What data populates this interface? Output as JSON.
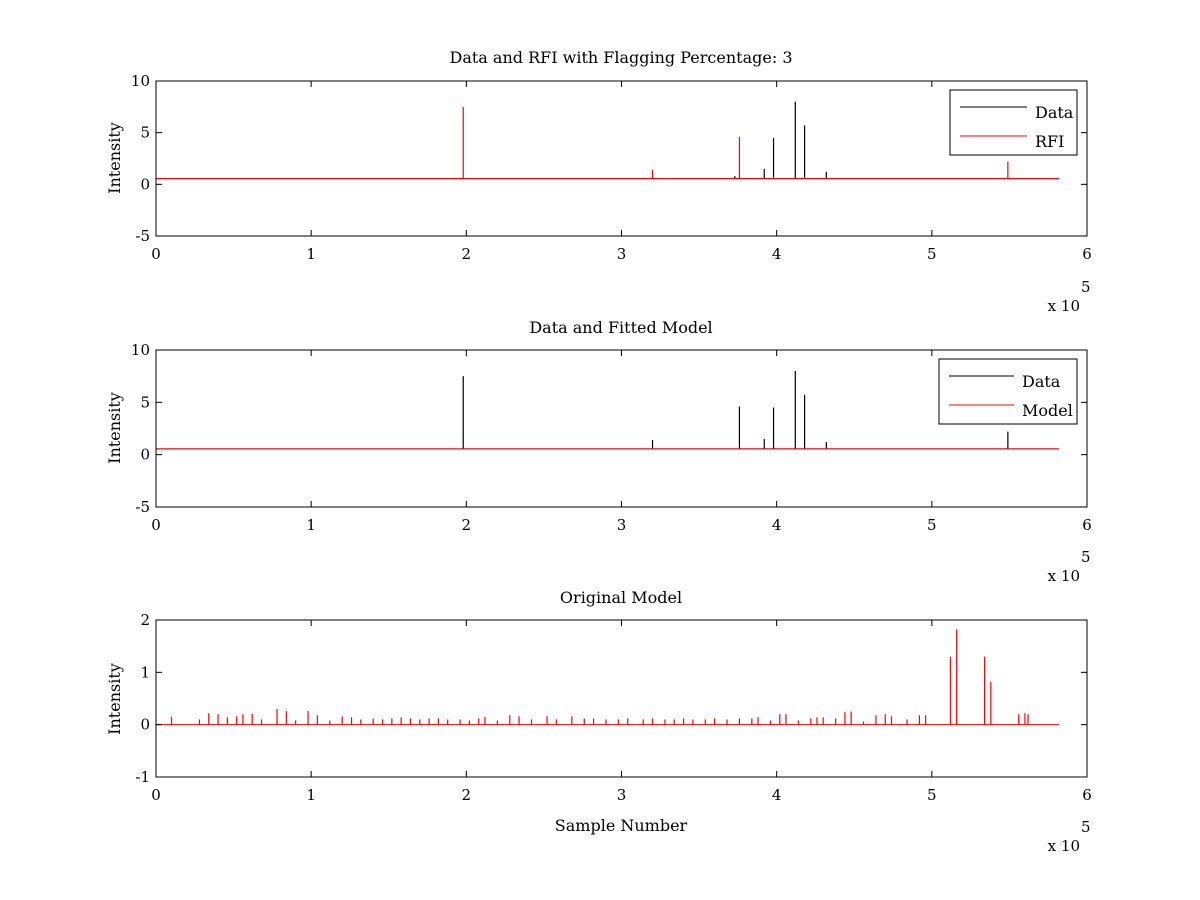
{
  "figure": {
    "background": "#ffffff"
  },
  "chart_data": [
    {
      "type": "line",
      "title": "Data and RFI with Flagging Percentage: 3",
      "ylabel": "Intensity",
      "xlabel": "",
      "xlim": [
        0,
        600000
      ],
      "ylim": [
        -5,
        10
      ],
      "xticks": [
        0,
        1,
        2,
        3,
        4,
        5,
        6
      ],
      "yticks": [
        -5,
        0,
        5,
        10
      ],
      "x_multiplier": "x 10",
      "x_exponent": "5",
      "baseline": 0.55,
      "legend": {
        "position": "top-right",
        "entries": [
          "Data",
          "RFI"
        ]
      },
      "series": [
        {
          "name": "Data",
          "color": "#000000",
          "spikes": [
            [
              373000,
              0.8
            ],
            [
              392000,
              1.5
            ],
            [
              398000,
              4.5
            ],
            [
              412000,
              8.0
            ],
            [
              418000,
              5.7
            ],
            [
              432000,
              1.2
            ]
          ]
        },
        {
          "name": "RFI",
          "color": "#ff0000",
          "spikes": [
            [
              198000,
              7.5
            ],
            [
              320000,
              1.4
            ],
            [
              376000,
              4.6
            ],
            [
              549000,
              2.2
            ]
          ]
        }
      ]
    },
    {
      "type": "line",
      "title": "Data and Fitted Model",
      "ylabel": "Intensity",
      "xlabel": "",
      "xlim": [
        0,
        600000
      ],
      "ylim": [
        -5,
        10
      ],
      "xticks": [
        0,
        1,
        2,
        3,
        4,
        5,
        6
      ],
      "yticks": [
        -5,
        0,
        5,
        10
      ],
      "x_multiplier": "x 10",
      "x_exponent": "5",
      "baseline": 0.55,
      "legend": {
        "position": "top-right",
        "entries": [
          "Data",
          "Model"
        ]
      },
      "series": [
        {
          "name": "Data",
          "color": "#000000",
          "spikes": [
            [
              198000,
              7.5
            ],
            [
              320000,
              1.4
            ],
            [
              376000,
              4.6
            ],
            [
              392000,
              1.5
            ],
            [
              398000,
              4.5
            ],
            [
              412000,
              8.0
            ],
            [
              418000,
              5.7
            ],
            [
              432000,
              1.2
            ],
            [
              549000,
              2.2
            ]
          ]
        },
        {
          "name": "Model",
          "color": "#ff0000",
          "spikes": []
        }
      ]
    },
    {
      "type": "line",
      "title": "Original Model",
      "ylabel": "Intensity",
      "xlabel": "Sample Number",
      "xlim": [
        0,
        600000
      ],
      "ylim": [
        -1,
        2
      ],
      "xticks": [
        0,
        1,
        2,
        3,
        4,
        5,
        6
      ],
      "yticks": [
        -1,
        0,
        1,
        2
      ],
      "x_multiplier": "x 10",
      "x_exponent": "5",
      "baseline": 0.0,
      "series": [
        {
          "name": "",
          "color": "#ff0000",
          "spikes": [
            [
              10000,
              0.15
            ],
            [
              28000,
              0.1
            ],
            [
              34000,
              0.22
            ],
            [
              40000,
              0.2
            ],
            [
              46000,
              0.14
            ],
            [
              52000,
              0.16
            ],
            [
              56000,
              0.2
            ],
            [
              62000,
              0.21
            ],
            [
              68000,
              0.1
            ],
            [
              78000,
              0.3
            ],
            [
              84000,
              0.26
            ],
            [
              90000,
              0.08
            ],
            [
              98000,
              0.26
            ],
            [
              104000,
              0.18
            ],
            [
              112000,
              0.08
            ],
            [
              120000,
              0.16
            ],
            [
              126000,
              0.14
            ],
            [
              132000,
              0.1
            ],
            [
              140000,
              0.12
            ],
            [
              146000,
              0.1
            ],
            [
              152000,
              0.12
            ],
            [
              158000,
              0.14
            ],
            [
              164000,
              0.12
            ],
            [
              170000,
              0.1
            ],
            [
              176000,
              0.12
            ],
            [
              182000,
              0.12
            ],
            [
              188000,
              0.1
            ],
            [
              196000,
              0.1
            ],
            [
              202000,
              0.08
            ],
            [
              208000,
              0.12
            ],
            [
              212000,
              0.15
            ],
            [
              220000,
              0.08
            ],
            [
              228000,
              0.18
            ],
            [
              234000,
              0.16
            ],
            [
              242000,
              0.1
            ],
            [
              252000,
              0.16
            ],
            [
              258000,
              0.1
            ],
            [
              268000,
              0.16
            ],
            [
              276000,
              0.12
            ],
            [
              282000,
              0.12
            ],
            [
              290000,
              0.1
            ],
            [
              298000,
              0.1
            ],
            [
              304000,
              0.12
            ],
            [
              314000,
              0.1
            ],
            [
              320000,
              0.12
            ],
            [
              328000,
              0.1
            ],
            [
              334000,
              0.1
            ],
            [
              340000,
              0.12
            ],
            [
              346000,
              0.1
            ],
            [
              354000,
              0.1
            ],
            [
              360000,
              0.12
            ],
            [
              368000,
              0.1
            ],
            [
              376000,
              0.12
            ],
            [
              384000,
              0.12
            ],
            [
              388000,
              0.14
            ],
            [
              396000,
              0.08
            ],
            [
              402000,
              0.2
            ],
            [
              406000,
              0.2
            ],
            [
              414000,
              0.08
            ],
            [
              422000,
              0.12
            ],
            [
              426000,
              0.14
            ],
            [
              430000,
              0.14
            ],
            [
              438000,
              0.12
            ],
            [
              444000,
              0.24
            ],
            [
              448000,
              0.25
            ],
            [
              456000,
              0.06
            ],
            [
              464000,
              0.18
            ],
            [
              470000,
              0.2
            ],
            [
              474000,
              0.16
            ],
            [
              484000,
              0.1
            ],
            [
              492000,
              0.18
            ],
            [
              496000,
              0.18
            ],
            [
              512000,
              1.3
            ],
            [
              516000,
              1.82
            ],
            [
              534000,
              1.3
            ],
            [
              538000,
              0.82
            ],
            [
              556000,
              0.2
            ],
            [
              560000,
              0.22
            ],
            [
              562000,
              0.2
            ]
          ]
        }
      ]
    }
  ]
}
